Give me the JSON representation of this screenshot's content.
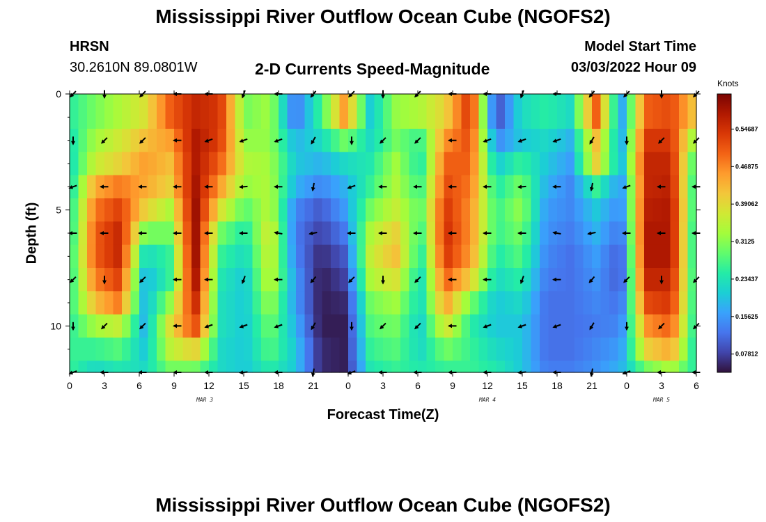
{
  "page": {
    "title": "Mississippi River Outflow Ocean Cube (NGOFS2)",
    "title_repeat": "Mississippi River Outflow Ocean Cube (NGOFS2)",
    "station_name": "HRSN",
    "station_coords": "30.2610N  89.0801W",
    "plot_title": "2-D Currents Speed-Magnitude",
    "model_start_label": "Model Start Time",
    "model_start_value": "03/03/2022 Hour 09"
  },
  "colors": {
    "colormap": [
      "#30123b",
      "#4145ab",
      "#4675ed",
      "#39a2fc",
      "#1bcfd4",
      "#24eca6",
      "#61fc6c",
      "#a4fc3b",
      "#d1e834",
      "#f3c63a",
      "#fe9b2d",
      "#f36315",
      "#d93806",
      "#b11901",
      "#7a0402"
    ],
    "frame": "#000000"
  },
  "chart_data": {
    "type": "heatmap",
    "title": "2-D Currents Speed-Magnitude",
    "xlabel": "Forecast Time(Z)",
    "ylabel": "Depth (ft)",
    "x_range": [
      0,
      54
    ],
    "y_range": [
      0,
      12
    ],
    "x_tick_hours": [
      0,
      3,
      6,
      9,
      12,
      15,
      18,
      21,
      24,
      27,
      30,
      33,
      36,
      39,
      42,
      45,
      48,
      51,
      54
    ],
    "x_tick_labels": [
      "0",
      "3",
      "6",
      "9",
      "12",
      "15",
      "18",
      "21",
      "0",
      "3",
      "6",
      "9",
      "12",
      "15",
      "18",
      "21",
      "0",
      "3",
      "6"
    ],
    "y_ticks": [
      0,
      5,
      10
    ],
    "y_tick_labels": [
      "0",
      "5",
      "10"
    ],
    "date_labels": [
      {
        "hour": 11,
        "label": "MAR 3"
      },
      {
        "hour": 36,
        "label": "MAR 4"
      },
      {
        "hour": 51,
        "label": "MAR 5"
      }
    ],
    "colorbar": {
      "title": "Knots",
      "min": 0.04,
      "max": 0.62,
      "tick_labels": [
        "0.07812",
        "0.15625",
        "0.23437",
        "0.3125",
        "0.39062",
        "0.46875",
        "0.54687"
      ],
      "tick_values": [
        0.078125,
        0.15625,
        0.234375,
        0.3125,
        0.390625,
        0.46875,
        0.546875
      ]
    },
    "depth_rows": [
      0,
      1.5,
      2.5,
      3.5,
      4.5,
      5.5,
      6.5,
      7.5,
      8.5,
      9.5,
      10.5,
      11.5
    ],
    "speed_profiles": [
      [
        0.25,
        0.23,
        0.22,
        0.22,
        0.23,
        0.23,
        0.24,
        0.24,
        0.25,
        0.25,
        0.26,
        0.26
      ],
      [
        0.3,
        0.33,
        0.36,
        0.44,
        0.48,
        0.5,
        0.5,
        0.47,
        0.42,
        0.33,
        0.26,
        0.22
      ],
      [
        0.34,
        0.37,
        0.4,
        0.48,
        0.53,
        0.56,
        0.56,
        0.53,
        0.48,
        0.36,
        0.28,
        0.24
      ],
      [
        0.38,
        0.42,
        0.45,
        0.44,
        0.4,
        0.3,
        0.22,
        0.18,
        0.18,
        0.18,
        0.2,
        0.22
      ],
      [
        0.5,
        0.45,
        0.42,
        0.4,
        0.34,
        0.3,
        0.26,
        0.26,
        0.32,
        0.38,
        0.35,
        0.3
      ],
      [
        0.56,
        0.58,
        0.58,
        0.59,
        0.6,
        0.6,
        0.6,
        0.59,
        0.56,
        0.52,
        0.4,
        0.3
      ],
      [
        0.54,
        0.53,
        0.5,
        0.45,
        0.38,
        0.3,
        0.26,
        0.24,
        0.23,
        0.23,
        0.22,
        0.22
      ],
      [
        0.3,
        0.32,
        0.34,
        0.32,
        0.28,
        0.24,
        0.22,
        0.2,
        0.2,
        0.2,
        0.2,
        0.2
      ],
      [
        0.33,
        0.32,
        0.33,
        0.34,
        0.35,
        0.38,
        0.37,
        0.36,
        0.33,
        0.3,
        0.28,
        0.25
      ],
      [
        0.12,
        0.18,
        0.2,
        0.18,
        0.14,
        0.13,
        0.14,
        0.16,
        0.16,
        0.18,
        0.2,
        0.2
      ],
      [
        0.26,
        0.22,
        0.18,
        0.14,
        0.1,
        0.08,
        0.06,
        0.05,
        0.05,
        0.05,
        0.06,
        0.06
      ],
      [
        0.46,
        0.3,
        0.22,
        0.18,
        0.16,
        0.13,
        0.1,
        0.08,
        0.06,
        0.05,
        0.05,
        0.05
      ],
      [
        0.2,
        0.22,
        0.24,
        0.26,
        0.3,
        0.34,
        0.36,
        0.34,
        0.3,
        0.28,
        0.26,
        0.24
      ],
      [
        0.32,
        0.3,
        0.33,
        0.34,
        0.36,
        0.4,
        0.42,
        0.38,
        0.33,
        0.3,
        0.28,
        0.26
      ],
      [
        0.34,
        0.26,
        0.24,
        0.26,
        0.28,
        0.26,
        0.24,
        0.22,
        0.22,
        0.21,
        0.22,
        0.24
      ],
      [
        0.4,
        0.46,
        0.5,
        0.52,
        0.54,
        0.55,
        0.54,
        0.5,
        0.45,
        0.38,
        0.3,
        0.26
      ],
      [
        0.55,
        0.52,
        0.5,
        0.48,
        0.46,
        0.46,
        0.45,
        0.4,
        0.3,
        0.25,
        0.26,
        0.26
      ],
      [
        0.08,
        0.14,
        0.2,
        0.24,
        0.26,
        0.26,
        0.24,
        0.22,
        0.2,
        0.2,
        0.22,
        0.24
      ],
      [
        0.22,
        0.2,
        0.26,
        0.3,
        0.32,
        0.3,
        0.28,
        0.25,
        0.22,
        0.2,
        0.2,
        0.2
      ],
      [
        0.25,
        0.22,
        0.2,
        0.18,
        0.16,
        0.15,
        0.14,
        0.13,
        0.12,
        0.12,
        0.12,
        0.13
      ],
      [
        0.22,
        0.18,
        0.16,
        0.14,
        0.14,
        0.13,
        0.12,
        0.12,
        0.12,
        0.12,
        0.12,
        0.13
      ],
      [
        0.5,
        0.42,
        0.4,
        0.26,
        0.2,
        0.18,
        0.16,
        0.15,
        0.14,
        0.13,
        0.14,
        0.15
      ],
      [
        0.16,
        0.17,
        0.18,
        0.15,
        0.14,
        0.12,
        0.1,
        0.1,
        0.12,
        0.14,
        0.16,
        0.18
      ],
      [
        0.5,
        0.54,
        0.56,
        0.56,
        0.57,
        0.58,
        0.58,
        0.56,
        0.52,
        0.46,
        0.4,
        0.3
      ],
      [
        0.52,
        0.54,
        0.56,
        0.57,
        0.58,
        0.58,
        0.58,
        0.56,
        0.54,
        0.5,
        0.44,
        0.34
      ],
      [
        0.4,
        0.3,
        0.24,
        0.22,
        0.22,
        0.21,
        0.21,
        0.22,
        0.22,
        0.22,
        0.22,
        0.24
      ]
    ],
    "arrow_hours": [
      0.3,
      3,
      6.3,
      9.3,
      12,
      15,
      18,
      21,
      24.3,
      27,
      30,
      33,
      36,
      39,
      42,
      45,
      48,
      51,
      54
    ],
    "arrow_depths": [
      0,
      2,
      4,
      6,
      8,
      10,
      12
    ],
    "arrow_dirs_deg": [
      [
        225,
        270,
        225,
        180,
        180,
        250,
        180,
        230
      ],
      [
        270,
        225,
        225,
        180,
        200,
        200,
        200,
        240
      ],
      [
        200,
        180,
        180,
        180,
        180,
        185,
        180,
        260
      ],
      [
        180,
        180,
        180,
        180,
        180,
        180,
        170,
        190
      ]
    ]
  }
}
